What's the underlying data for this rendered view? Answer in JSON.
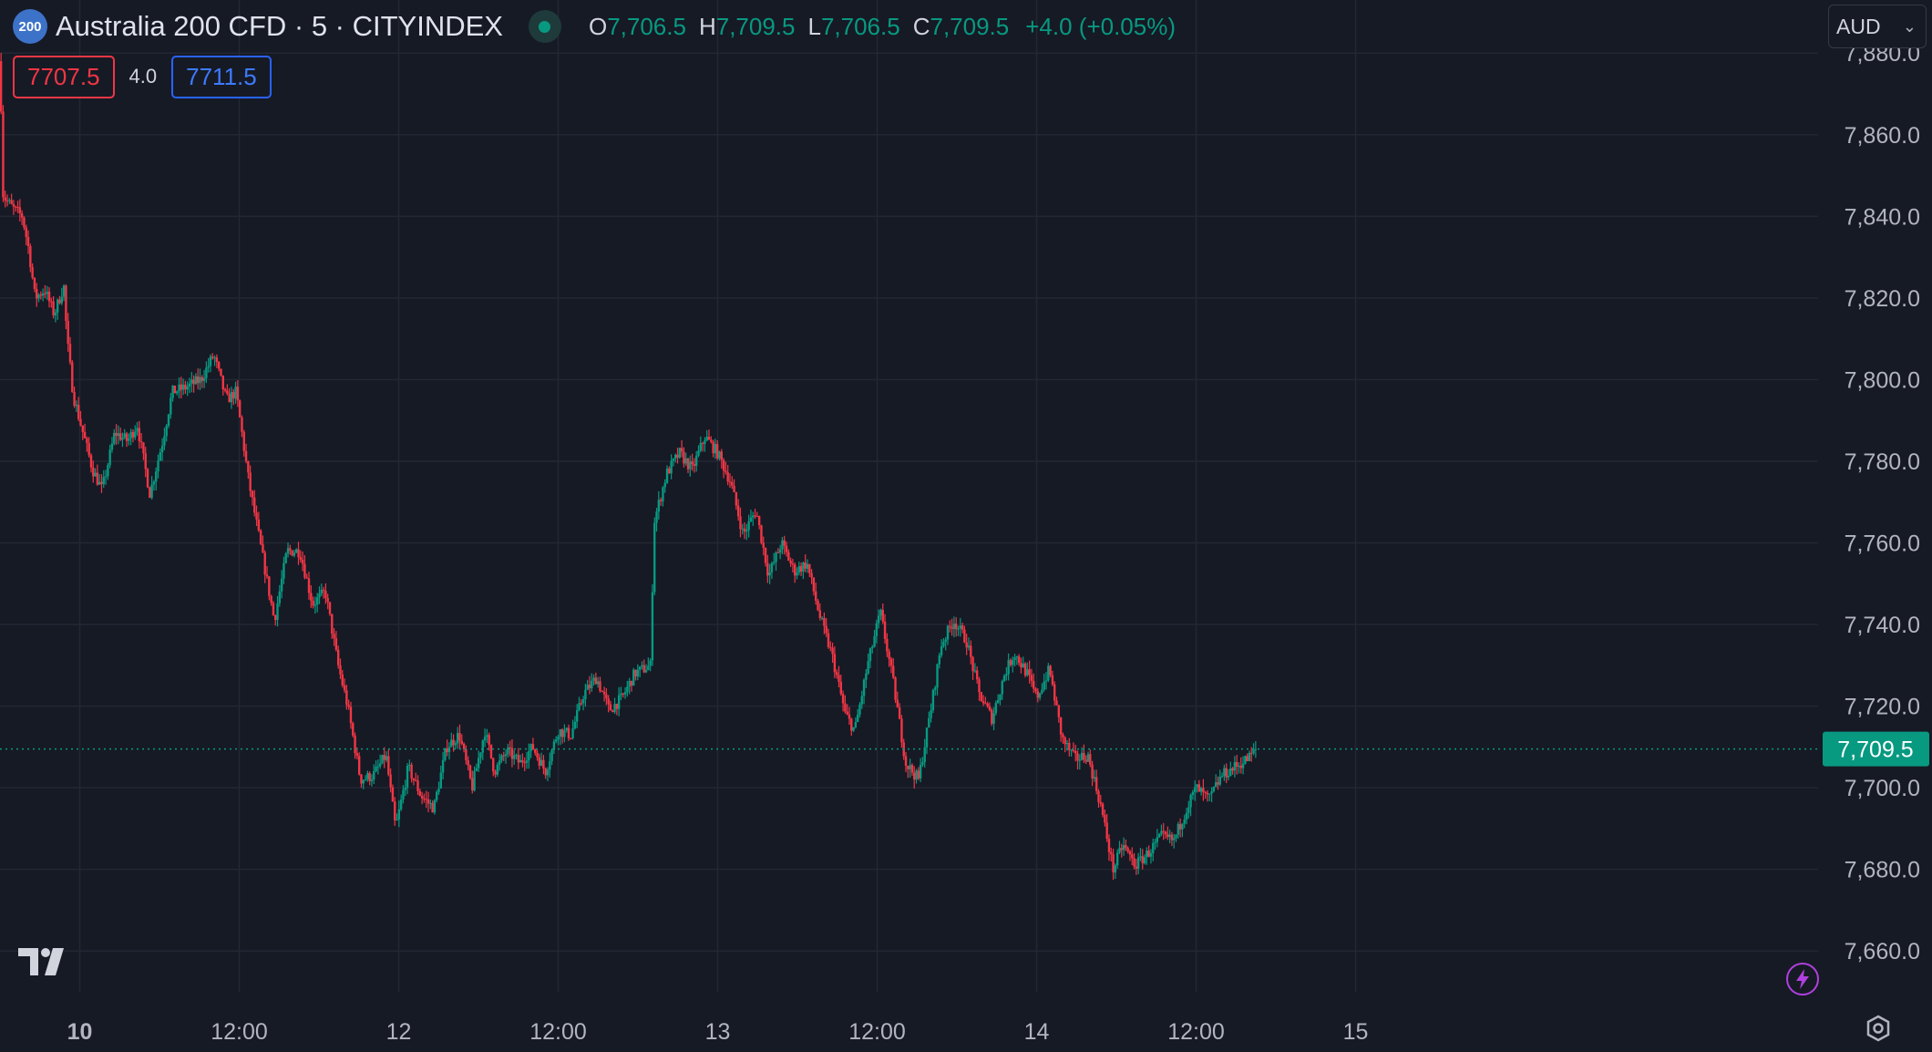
{
  "header": {
    "badge": "200",
    "title": "Australia 200 CFD · 5 · CITYINDEX",
    "ohlc": [
      {
        "key": "O",
        "value": "7,706.5"
      },
      {
        "key": "H",
        "value": "7,709.5"
      },
      {
        "key": "L",
        "value": "7,706.5"
      },
      {
        "key": "C",
        "value": "7,709.5"
      }
    ],
    "change": "+4.0 (+0.05%)"
  },
  "quote": {
    "bid": "7707.5",
    "spread": "4.0",
    "ask": "7711.5"
  },
  "currency": "AUD",
  "colors": {
    "up": "#089981",
    "down": "#f23645",
    "background": "#161a25",
    "grid": "#232734"
  },
  "icons": [
    "tradingview-logo-icon",
    "flash-icon",
    "settings-icon",
    "chevron-down-icon"
  ],
  "chart_data": {
    "type": "candlestick",
    "title": "Australia 200 CFD · 5 · CITYINDEX",
    "y_axis": {
      "min": 7650,
      "max": 7893,
      "ticks": [
        7660,
        7680,
        7700,
        7720,
        7740,
        7760,
        7780,
        7800,
        7820,
        7840,
        7860,
        7880
      ],
      "tick_labels": [
        "7,660.0",
        "7,680.0",
        "7,700.0",
        "7,720.0",
        "7,740.0",
        "7,760.0",
        "7,780.0",
        "7,800.0",
        "7,820.0",
        "7,840.0",
        "7,860.0",
        "7,880.0"
      ]
    },
    "x_axis": {
      "start": 9.75,
      "end": 15.45,
      "ticks": [
        {
          "value": 10.0,
          "label": "10",
          "bold": true
        },
        {
          "value": 10.5,
          "label": "12:00"
        },
        {
          "value": 11.0,
          "label": "12",
          "bold": false
        },
        {
          "value": 11.5,
          "label": "12:00"
        },
        {
          "value": 12.0,
          "label": "13",
          "bold": false
        },
        {
          "value": 12.5,
          "label": "12:00"
        },
        {
          "value": 13.0,
          "label": "14",
          "bold": false
        },
        {
          "value": 13.5,
          "label": "12:00"
        },
        {
          "value": 14.0,
          "label": "15",
          "bold": false
        }
      ]
    },
    "last_price": 7709.5,
    "last_price_label": "7,709.5",
    "grid": true,
    "close_path": [
      {
        "x": 9.75,
        "y": 7878
      },
      {
        "x": 9.76,
        "y": 7845
      },
      {
        "x": 9.79,
        "y": 7842
      },
      {
        "x": 9.82,
        "y": 7840
      },
      {
        "x": 9.84,
        "y": 7832
      },
      {
        "x": 9.86,
        "y": 7820
      },
      {
        "x": 9.89,
        "y": 7822
      },
      {
        "x": 9.92,
        "y": 7816
      },
      {
        "x": 9.95,
        "y": 7823
      },
      {
        "x": 9.96,
        "y": 7810
      },
      {
        "x": 9.98,
        "y": 7796
      },
      {
        "x": 10.04,
        "y": 7778
      },
      {
        "x": 10.07,
        "y": 7773
      },
      {
        "x": 10.11,
        "y": 7787
      },
      {
        "x": 10.15,
        "y": 7785
      },
      {
        "x": 10.18,
        "y": 7789
      },
      {
        "x": 10.22,
        "y": 7772
      },
      {
        "x": 10.26,
        "y": 7785
      },
      {
        "x": 10.29,
        "y": 7797
      },
      {
        "x": 10.33,
        "y": 7798
      },
      {
        "x": 10.38,
        "y": 7800
      },
      {
        "x": 10.42,
        "y": 7806
      },
      {
        "x": 10.46,
        "y": 7795
      },
      {
        "x": 10.49,
        "y": 7797
      },
      {
        "x": 10.53,
        "y": 7775
      },
      {
        "x": 10.57,
        "y": 7758
      },
      {
        "x": 10.61,
        "y": 7741
      },
      {
        "x": 10.65,
        "y": 7758
      },
      {
        "x": 10.69,
        "y": 7758
      },
      {
        "x": 10.73,
        "y": 7745
      },
      {
        "x": 10.77,
        "y": 7748
      },
      {
        "x": 10.81,
        "y": 7730
      },
      {
        "x": 10.84,
        "y": 7720
      },
      {
        "x": 10.88,
        "y": 7702
      },
      {
        "x": 10.92,
        "y": 7703
      },
      {
        "x": 10.96,
        "y": 7708
      },
      {
        "x": 10.99,
        "y": 7690
      },
      {
        "x": 11.03,
        "y": 7705
      },
      {
        "x": 11.07,
        "y": 7698
      },
      {
        "x": 11.11,
        "y": 7695
      },
      {
        "x": 11.15,
        "y": 7710
      },
      {
        "x": 11.19,
        "y": 7713
      },
      {
        "x": 11.23,
        "y": 7700
      },
      {
        "x": 11.27,
        "y": 7714
      },
      {
        "x": 11.3,
        "y": 7704
      },
      {
        "x": 11.34,
        "y": 7709
      },
      {
        "x": 11.38,
        "y": 7706
      },
      {
        "x": 11.42,
        "y": 7710
      },
      {
        "x": 11.46,
        "y": 7704
      },
      {
        "x": 11.5,
        "y": 7714
      },
      {
        "x": 11.54,
        "y": 7713
      },
      {
        "x": 11.58,
        "y": 7723
      },
      {
        "x": 11.62,
        "y": 7727
      },
      {
        "x": 11.66,
        "y": 7719
      },
      {
        "x": 11.7,
        "y": 7722
      },
      {
        "x": 11.74,
        "y": 7728
      },
      {
        "x": 11.79,
        "y": 7730
      },
      {
        "x": 11.8,
        "y": 7765
      },
      {
        "x": 11.84,
        "y": 7777
      },
      {
        "x": 11.88,
        "y": 7782
      },
      {
        "x": 11.92,
        "y": 7778
      },
      {
        "x": 11.96,
        "y": 7786
      },
      {
        "x": 12.0,
        "y": 7782
      },
      {
        "x": 12.04,
        "y": 7775
      },
      {
        "x": 12.08,
        "y": 7762
      },
      {
        "x": 12.12,
        "y": 7768
      },
      {
        "x": 12.16,
        "y": 7752
      },
      {
        "x": 12.2,
        "y": 7760
      },
      {
        "x": 12.24,
        "y": 7753
      },
      {
        "x": 12.28,
        "y": 7755
      },
      {
        "x": 12.32,
        "y": 7742
      },
      {
        "x": 12.36,
        "y": 7732
      },
      {
        "x": 12.4,
        "y": 7718
      },
      {
        "x": 12.43,
        "y": 7714
      },
      {
        "x": 12.47,
        "y": 7730
      },
      {
        "x": 12.51,
        "y": 7743
      },
      {
        "x": 12.55,
        "y": 7726
      },
      {
        "x": 12.59,
        "y": 7706
      },
      {
        "x": 12.63,
        "y": 7702
      },
      {
        "x": 12.67,
        "y": 7720
      },
      {
        "x": 12.7,
        "y": 7735
      },
      {
        "x": 12.74,
        "y": 7741
      },
      {
        "x": 12.78,
        "y": 7736
      },
      {
        "x": 12.82,
        "y": 7723
      },
      {
        "x": 12.86,
        "y": 7717
      },
      {
        "x": 12.9,
        "y": 7728
      },
      {
        "x": 12.93,
        "y": 7733
      },
      {
        "x": 12.97,
        "y": 7728
      },
      {
        "x": 13.0,
        "y": 7722
      },
      {
        "x": 13.04,
        "y": 7729
      },
      {
        "x": 13.08,
        "y": 7712
      },
      {
        "x": 13.12,
        "y": 7707
      },
      {
        "x": 13.16,
        "y": 7708
      },
      {
        "x": 13.2,
        "y": 7696
      },
      {
        "x": 13.24,
        "y": 7680
      },
      {
        "x": 13.27,
        "y": 7686
      },
      {
        "x": 13.31,
        "y": 7681
      },
      {
        "x": 13.35,
        "y": 7684
      },
      {
        "x": 13.39,
        "y": 7688
      },
      {
        "x": 13.43,
        "y": 7687
      },
      {
        "x": 13.47,
        "y": 7695
      },
      {
        "x": 13.5,
        "y": 7700
      },
      {
        "x": 13.54,
        "y": 7697
      },
      {
        "x": 13.58,
        "y": 7703
      },
      {
        "x": 13.62,
        "y": 7705
      },
      {
        "x": 13.66,
        "y": 7707
      },
      {
        "x": 13.69,
        "y": 7709.5
      }
    ]
  }
}
